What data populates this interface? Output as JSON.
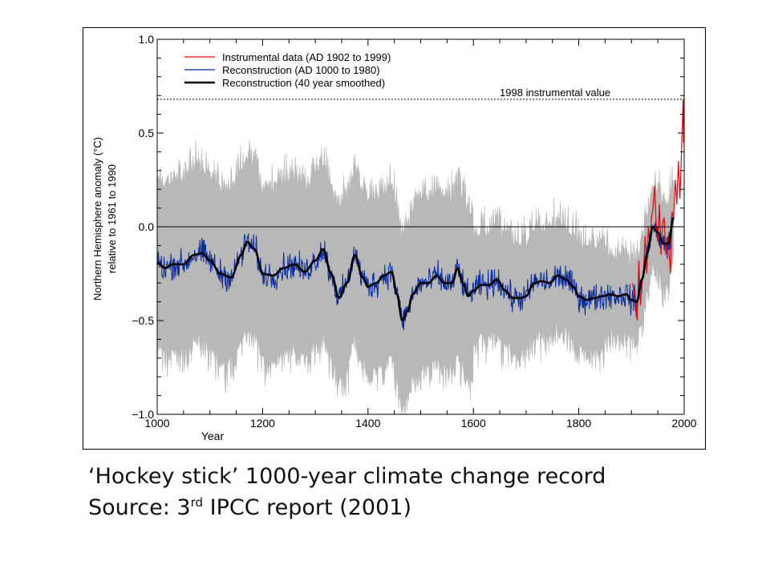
{
  "chart_data": {
    "type": "line",
    "title": "",
    "xlabel": "Year",
    "ylabel_lines": [
      "Northern Hemisphere anomaly (°C)",
      "relative to 1961 to 1990"
    ],
    "xlim": [
      1000,
      2000
    ],
    "ylim": [
      -1.0,
      1.0
    ],
    "x_ticks": [
      1000,
      1200,
      1400,
      1600,
      1800,
      2000
    ],
    "x_tick_labels": [
      "1000",
      "1200",
      "1400",
      "1600",
      "1800",
      "2000"
    ],
    "y_ticks": [
      -1.0,
      -0.5,
      0.0,
      0.5,
      1.0
    ],
    "y_tick_labels": [
      "−1.0",
      "−0.5",
      "0.0",
      "0.5",
      "1.0"
    ],
    "zero_line": 0.0,
    "reference_line": {
      "value": 0.68,
      "label": "1998 instrumental value"
    },
    "legend": {
      "placement": "top-left",
      "entries": [
        {
          "label": "Instrumental data (AD 1902 to 1999)",
          "color": "#e8000b"
        },
        {
          "label": "Reconstruction (AD 1000 to 1980)",
          "color": "#0b2d9e"
        },
        {
          "label": "Reconstruction (40 year smoothed)",
          "color": "#000000"
        }
      ]
    },
    "colors": {
      "uncertainty": "#b8b8b8",
      "reconstruction": "#0b2d9e",
      "smoothed": "#000000",
      "instrumental": "#e8000b"
    },
    "series": [
      {
        "id": "smoothed",
        "label": "Reconstruction (40 year smoothed)",
        "x": [
          1000,
          1015,
          1030,
          1050,
          1070,
          1085,
          1100,
          1120,
          1140,
          1160,
          1170,
          1185,
          1200,
          1220,
          1240,
          1260,
          1280,
          1300,
          1315,
          1330,
          1345,
          1360,
          1375,
          1390,
          1400,
          1415,
          1430,
          1445,
          1455,
          1465,
          1475,
          1485,
          1500,
          1515,
          1530,
          1545,
          1560,
          1570,
          1580,
          1590,
          1600,
          1615,
          1630,
          1645,
          1660,
          1675,
          1690,
          1700,
          1715,
          1730,
          1745,
          1760,
          1775,
          1790,
          1800,
          1815,
          1830,
          1845,
          1860,
          1875,
          1890,
          1900,
          1910,
          1920,
          1930,
          1940,
          1950,
          1960,
          1970,
          1980
        ],
        "y": [
          -0.19,
          -0.22,
          -0.2,
          -0.2,
          -0.15,
          -0.14,
          -0.18,
          -0.25,
          -0.27,
          -0.15,
          -0.08,
          -0.12,
          -0.25,
          -0.26,
          -0.22,
          -0.2,
          -0.24,
          -0.18,
          -0.12,
          -0.25,
          -0.38,
          -0.3,
          -0.15,
          -0.27,
          -0.32,
          -0.3,
          -0.26,
          -0.24,
          -0.36,
          -0.5,
          -0.45,
          -0.36,
          -0.3,
          -0.3,
          -0.26,
          -0.3,
          -0.3,
          -0.22,
          -0.3,
          -0.37,
          -0.34,
          -0.31,
          -0.31,
          -0.28,
          -0.34,
          -0.38,
          -0.38,
          -0.37,
          -0.3,
          -0.29,
          -0.3,
          -0.26,
          -0.28,
          -0.32,
          -0.37,
          -0.39,
          -0.38,
          -0.37,
          -0.36,
          -0.37,
          -0.36,
          -0.39,
          -0.4,
          -0.28,
          -0.14,
          0.0,
          -0.03,
          -0.09,
          -0.09,
          0.05
        ]
      },
      {
        "id": "instrumental",
        "label": "Instrumental data (AD 1902 to 1999)",
        "x": [
          1902,
          1905,
          1908,
          1911,
          1914,
          1917,
          1920,
          1923,
          1926,
          1929,
          1932,
          1935,
          1938,
          1941,
          1944,
          1947,
          1950,
          1953,
          1956,
          1959,
          1962,
          1965,
          1968,
          1971,
          1974,
          1977,
          1980,
          1983,
          1986,
          1989,
          1992,
          1995,
          1998,
          1999
        ],
        "y": [
          -0.3,
          -0.35,
          -0.45,
          -0.5,
          -0.18,
          -0.42,
          -0.3,
          -0.22,
          -0.05,
          -0.25,
          0.0,
          -0.1,
          0.05,
          0.1,
          0.22,
          0.0,
          -0.08,
          0.12,
          -0.15,
          0.02,
          0.05,
          -0.15,
          -0.05,
          -0.12,
          -0.25,
          0.08,
          0.05,
          0.25,
          0.12,
          0.35,
          0.15,
          0.4,
          0.68,
          0.45
        ]
      },
      {
        "id": "reconstruction",
        "label": "Reconstruction (AD 1000 to 1980)",
        "x_range": [
          1000,
          1980
        ],
        "note_type": "annual"
      },
      {
        "id": "uncertainty",
        "label": "",
        "x_range": [
          1000,
          1980
        ],
        "type": "band"
      }
    ]
  },
  "captions": {
    "line1": "‘Hockey stick’ 1000-year climate change record",
    "line2_prefix": "Source:   3",
    "line2_sup": "rd",
    "line2_suffix": " IPCC report (2001)"
  }
}
